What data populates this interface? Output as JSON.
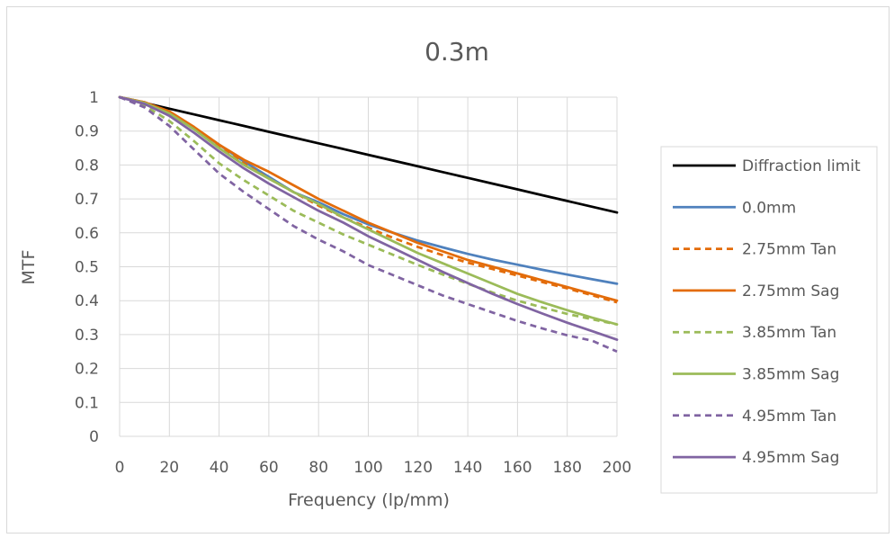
{
  "chart_data": {
    "type": "line",
    "title": "0.3m",
    "xlabel": "Frequency (lp/mm)",
    "ylabel": "MTF",
    "xlim": [
      0,
      200
    ],
    "ylim": [
      0,
      1
    ],
    "x_ticks": [
      "0",
      "20",
      "40",
      "60",
      "80",
      "100",
      "120",
      "140",
      "160",
      "180",
      "200"
    ],
    "y_ticks": [
      "0",
      "0.1",
      "0.2",
      "0.3",
      "0.4",
      "0.5",
      "0.6",
      "0.7",
      "0.8",
      "0.9",
      "1"
    ],
    "grid": true,
    "legend_position": "right",
    "x": [
      0,
      10,
      20,
      30,
      40,
      50,
      60,
      70,
      80,
      90,
      100,
      110,
      120,
      130,
      140,
      150,
      160,
      170,
      180,
      190,
      200
    ],
    "series": [
      {
        "name": "Diffraction limit",
        "color": "#000000",
        "dash": false,
        "values": [
          1.0,
          0.983,
          0.966,
          0.949,
          0.932,
          0.915,
          0.898,
          0.881,
          0.864,
          0.847,
          0.83,
          0.813,
          0.796,
          0.779,
          0.762,
          0.745,
          0.728,
          0.711,
          0.694,
          0.677,
          0.66
        ]
      },
      {
        "name": "0.0mm",
        "color": "#4f81bd",
        "dash": false,
        "values": [
          1.0,
          0.985,
          0.955,
          0.91,
          0.86,
          0.81,
          0.765,
          0.72,
          0.69,
          0.655,
          0.625,
          0.6,
          0.577,
          0.557,
          0.538,
          0.521,
          0.506,
          0.491,
          0.477,
          0.463,
          0.45
        ]
      },
      {
        "name": "2.75mm Tan",
        "color": "#e36c0a",
        "dash": true,
        "values": [
          1.0,
          0.985,
          0.955,
          0.91,
          0.855,
          0.805,
          0.76,
          0.72,
          0.68,
          0.645,
          0.615,
          0.585,
          0.558,
          0.534,
          0.512,
          0.493,
          0.474,
          0.455,
          0.436,
          0.416,
          0.395
        ]
      },
      {
        "name": "2.75mm Sag",
        "color": "#e36c0a",
        "dash": false,
        "values": [
          1.0,
          0.985,
          0.958,
          0.912,
          0.86,
          0.815,
          0.78,
          0.74,
          0.7,
          0.665,
          0.63,
          0.6,
          0.57,
          0.545,
          0.52,
          0.5,
          0.48,
          0.46,
          0.44,
          0.42,
          0.4
        ]
      },
      {
        "name": "3.85mm Tan",
        "color": "#9bbb59",
        "dash": true,
        "values": [
          1.0,
          0.975,
          0.93,
          0.87,
          0.805,
          0.755,
          0.71,
          0.665,
          0.63,
          0.595,
          0.565,
          0.535,
          0.505,
          0.477,
          0.45,
          0.424,
          0.4,
          0.38,
          0.361,
          0.345,
          0.33
        ]
      },
      {
        "name": "3.85mm Sag",
        "color": "#9bbb59",
        "dash": false,
        "values": [
          1.0,
          0.983,
          0.952,
          0.905,
          0.85,
          0.8,
          0.76,
          0.72,
          0.685,
          0.645,
          0.61,
          0.575,
          0.54,
          0.51,
          0.48,
          0.45,
          0.42,
          0.395,
          0.372,
          0.35,
          0.33
        ]
      },
      {
        "name": "4.95mm Tan",
        "color": "#8064a2",
        "dash": true,
        "values": [
          1.0,
          0.97,
          0.915,
          0.845,
          0.775,
          0.72,
          0.67,
          0.62,
          0.58,
          0.545,
          0.505,
          0.475,
          0.445,
          0.415,
          0.39,
          0.365,
          0.34,
          0.318,
          0.298,
          0.282,
          0.25
        ]
      },
      {
        "name": "4.95mm Sag",
        "color": "#8064a2",
        "dash": false,
        "values": [
          1.0,
          0.98,
          0.945,
          0.895,
          0.84,
          0.79,
          0.745,
          0.705,
          0.665,
          0.63,
          0.59,
          0.555,
          0.52,
          0.485,
          0.452,
          0.42,
          0.39,
          0.362,
          0.335,
          0.31,
          0.285
        ]
      }
    ]
  }
}
